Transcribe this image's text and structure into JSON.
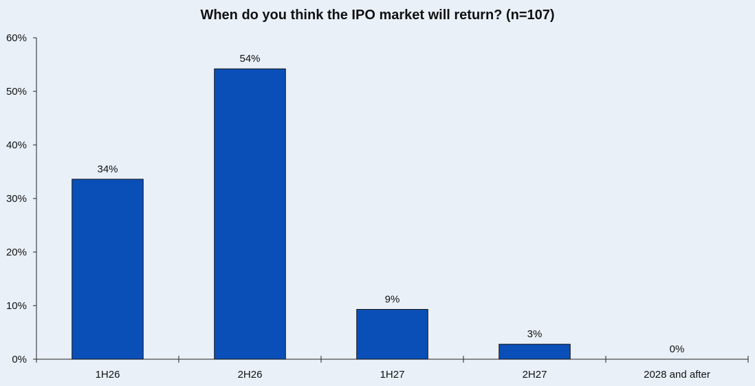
{
  "chart_data": {
    "type": "bar",
    "title": "When do you think the IPO market will return? (n=107)",
    "xlabel": "",
    "ylabel": "",
    "categories": [
      "1H26",
      "2H26",
      "1H27",
      "2H27",
      "2028 and after"
    ],
    "values": [
      33.6,
      54.2,
      9.3,
      2.8,
      0
    ],
    "data_labels": [
      "34%",
      "54%",
      "9%",
      "3%",
      "0%"
    ],
    "ylim": [
      0,
      60
    ],
    "yticks": [
      0,
      10,
      20,
      30,
      40,
      50,
      60
    ],
    "ytick_labels": [
      "0%",
      "10%",
      "20%",
      "30%",
      "40%",
      "50%",
      "60%"
    ],
    "grid": false,
    "legend": "none",
    "colors": {
      "bar": "#0a4fb8",
      "background": "#e9f0f8"
    }
  }
}
